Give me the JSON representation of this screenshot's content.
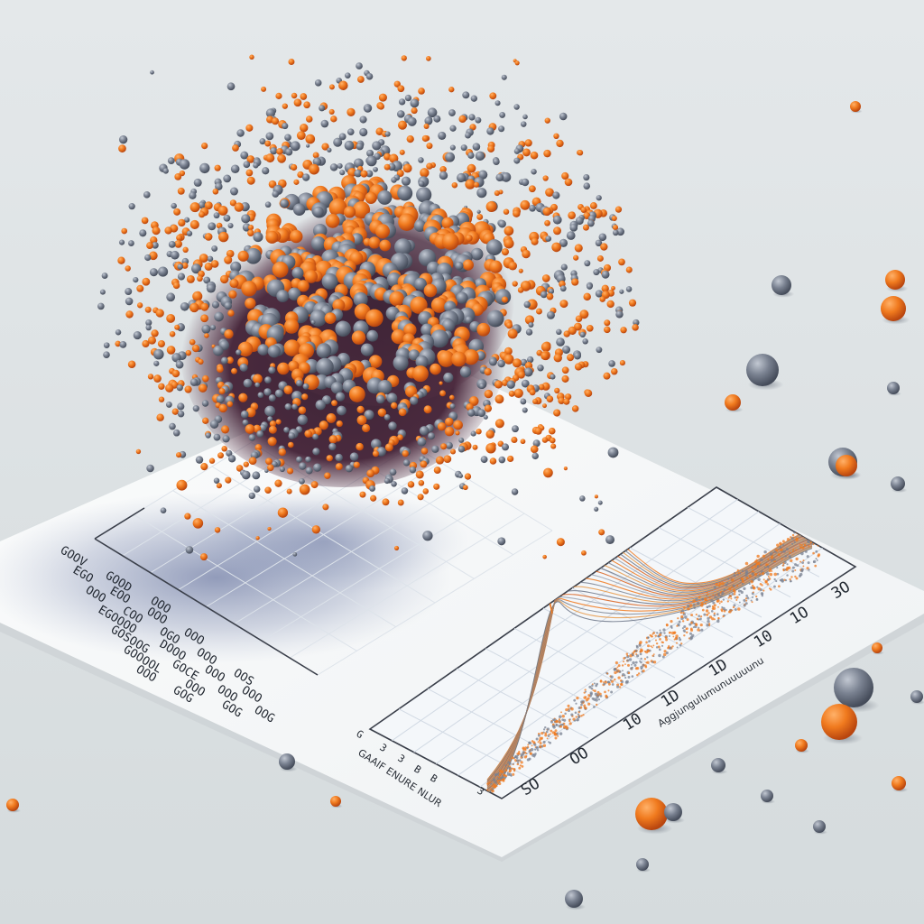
{
  "colors": {
    "background_top": "#e4e8ea",
    "background_bottom": "#d5dbdd",
    "paper": "#f7f8f9",
    "paper_edge": "#c9ced2",
    "grid": "#d5dde6",
    "axis": "#3a3f4a",
    "orange": "#f07a1e",
    "orange_dark": "#c9531a",
    "gray": "#7a8291",
    "gray_dark": "#525a6a",
    "core_dark": "#4a2a3e",
    "shadow": "#5a6a9a"
  },
  "right_chart": {
    "x_ticks": [
      "SO",
      "OO",
      "10",
      "1D",
      "1D",
      "10",
      "1O",
      "3O"
    ],
    "left_ticks": [
      "G",
      "3",
      "3",
      "B",
      "B",
      "3"
    ],
    "x_axis_label": "Aggjungulumunuuuuunu",
    "bottom_label": "GAAIF ENURE NLUR"
  },
  "left_chart": {
    "rows": [
      [
        "GOOV",
        "GOOD",
        "OOO"
      ],
      [
        "EGO",
        "EOO",
        "OOO",
        "OOO"
      ],
      [
        "OOO",
        "COO",
        "OGO",
        "OOO",
        "OOS"
      ],
      [
        "EGOOOO",
        "DOOO",
        "OOO",
        "OOO"
      ],
      [
        "GOSOOG",
        "GOCE",
        "OOO",
        "OOG"
      ],
      [
        "GOOOOL",
        "OOO",
        "GOG"
      ],
      [
        "OOO",
        "GOG"
      ]
    ]
  },
  "icons": {
    "particle_cloud": "particle-cloud-icon",
    "sphere": "sphere-icon"
  }
}
